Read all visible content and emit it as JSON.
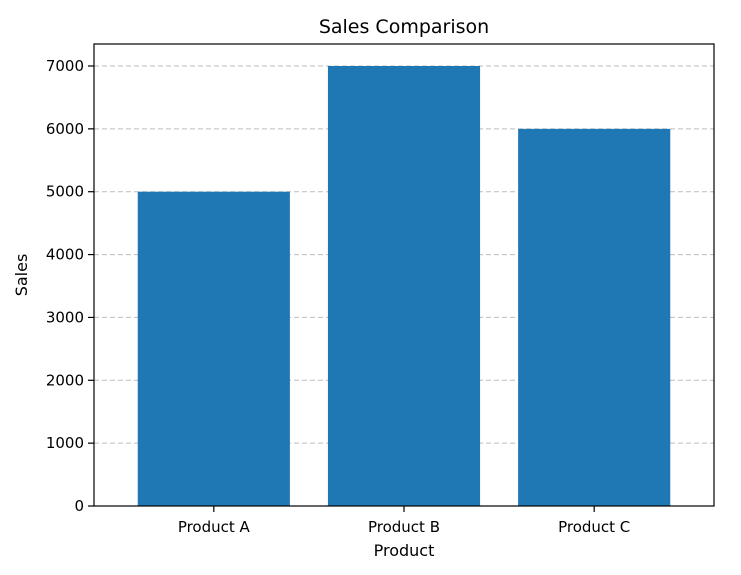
{
  "chart_data": {
    "type": "bar",
    "title": "Sales Comparison",
    "xlabel": "Product",
    "ylabel": "Sales",
    "categories": [
      "Product A",
      "Product B",
      "Product C"
    ],
    "values": [
      5000,
      7000,
      6000
    ],
    "yticks": [
      0,
      1000,
      2000,
      3000,
      4000,
      5000,
      6000,
      7000
    ],
    "ylim": [
      0,
      7350
    ],
    "bar_color": "#1f77b4",
    "grid": "y-dashed",
    "legend": "none"
  }
}
